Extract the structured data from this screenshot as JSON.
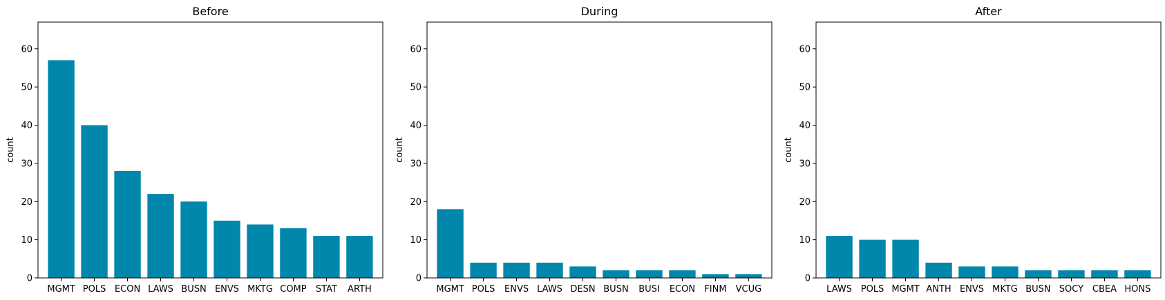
{
  "chart_data": [
    {
      "type": "bar",
      "title": "Before",
      "ylabel": "count",
      "xlabel": "",
      "ylim": [
        0,
        67
      ],
      "yticks": [
        0,
        10,
        20,
        30,
        40,
        50,
        60
      ],
      "bar_color": "#0087ab",
      "categories": [
        "MGMT",
        "POLS",
        "ECON",
        "LAWS",
        "BUSN",
        "ENVS",
        "MKTG",
        "COMP",
        "STAT",
        "ARTH"
      ],
      "values": [
        57,
        40,
        28,
        22,
        20,
        15,
        14,
        13,
        11,
        11
      ]
    },
    {
      "type": "bar",
      "title": "During",
      "ylabel": "count",
      "xlabel": "",
      "ylim": [
        0,
        67
      ],
      "yticks": [
        0,
        10,
        20,
        30,
        40,
        50,
        60
      ],
      "bar_color": "#0087ab",
      "categories": [
        "MGMT",
        "POLS",
        "ENVS",
        "LAWS",
        "DESN",
        "BUSN",
        "BUSI",
        "ECON",
        "FINM",
        "VCUG"
      ],
      "values": [
        18,
        4,
        4,
        4,
        3,
        2,
        2,
        2,
        1,
        1
      ]
    },
    {
      "type": "bar",
      "title": "After",
      "ylabel": "count",
      "xlabel": "",
      "ylim": [
        0,
        67
      ],
      "yticks": [
        0,
        10,
        20,
        30,
        40,
        50,
        60
      ],
      "bar_color": "#0087ab",
      "categories": [
        "LAWS",
        "POLS",
        "MGMT",
        "ANTH",
        "ENVS",
        "MKTG",
        "BUSN",
        "SOCY",
        "CBEA",
        "HONS"
      ],
      "values": [
        11,
        10,
        10,
        4,
        3,
        3,
        2,
        2,
        2,
        2
      ]
    }
  ]
}
